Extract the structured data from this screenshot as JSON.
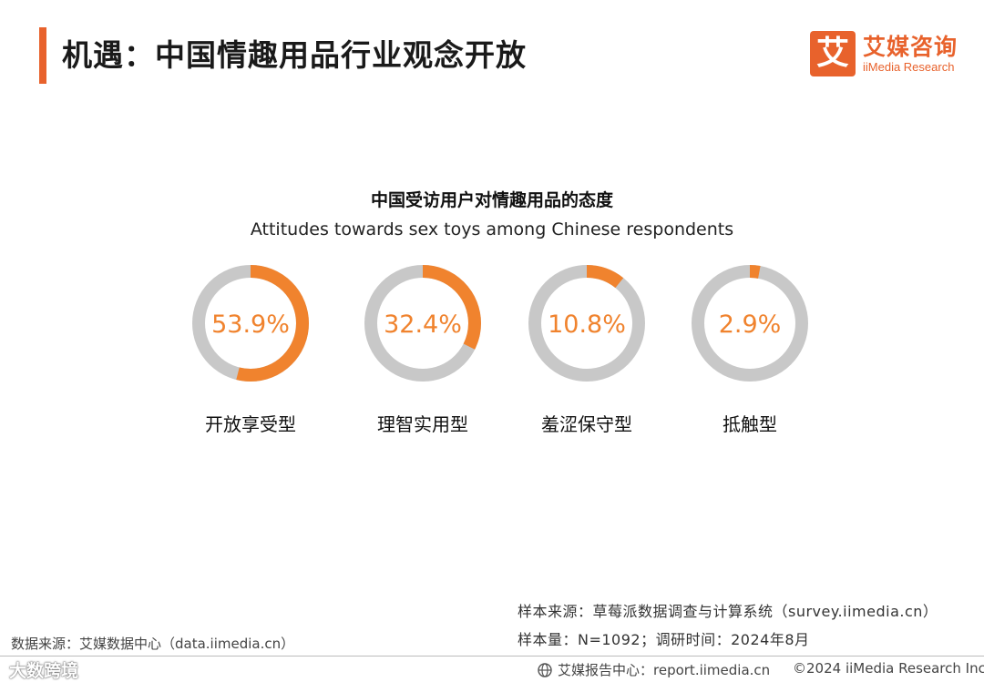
{
  "header": {
    "title": "机遇：中国情趣用品行业观念开放",
    "logo": {
      "mark": "艾",
      "name_cn": "艾媒咨询",
      "name_en": "iiMedia Research"
    }
  },
  "chart_data": {
    "type": "pie",
    "title": "中国受访用户对情趣用品的态度",
    "subtitle": "Attitudes towards sex toys among Chinese respondents",
    "categories": [
      "开放享受型",
      "理智实用型",
      "羞涩保守型",
      "抵触型"
    ],
    "values": [
      53.9,
      32.4,
      10.8,
      2.9
    ],
    "value_labels": [
      "53.9%",
      "32.4%",
      "10.8%",
      "2.9%"
    ],
    "colors": {
      "highlight": "#F0832E",
      "remainder": "#C8C8C8",
      "label": "#F0832E"
    }
  },
  "footer": {
    "data_source": "数据来源：艾媒数据中心（data.iimedia.cn）",
    "sample_source": "样本来源：草莓派数据调查与计算系统（survey.iimedia.cn）",
    "sample_size": "样本量：N=1092；调研时间：2024年8月",
    "report_center": "艾媒报告中心：report.iimedia.cn",
    "copyright": "©2024  iiMedia Research Inc",
    "watermark": "大数跨境"
  },
  "colors": {
    "accent": "#E8622C"
  }
}
